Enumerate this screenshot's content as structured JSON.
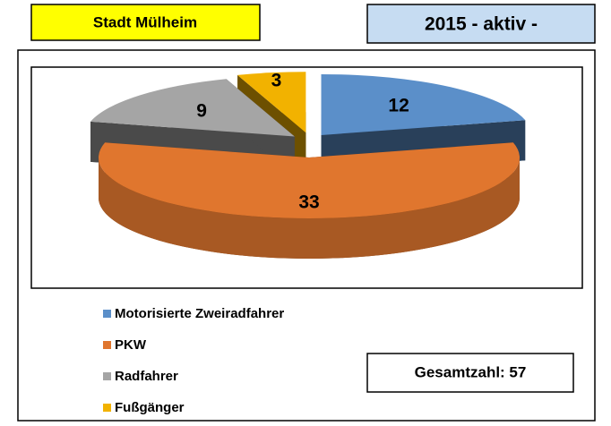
{
  "header": {
    "city": "Stadt Mülheim",
    "period": "2015 - aktiv -"
  },
  "chart_data": {
    "type": "pie",
    "categories": [
      "Motorisierte Zweiradfahrer",
      "PKW",
      "Radfahrer",
      "Fußgänger"
    ],
    "values": [
      12,
      33,
      9,
      3
    ],
    "colors": [
      "#5b8fc9",
      "#e0762e",
      "#a5a5a5",
      "#f2b200"
    ],
    "legend": "bottom-left",
    "total_label": "Gesamtzahl: 57"
  }
}
